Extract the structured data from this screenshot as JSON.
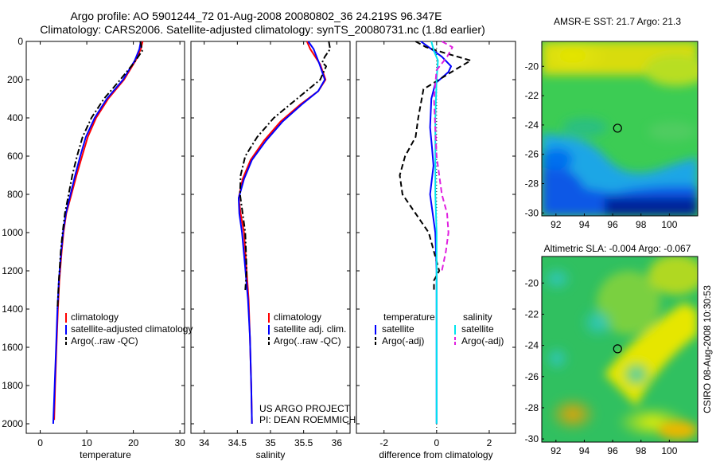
{
  "header": {
    "title_line1": "Argo profile: AO 5901244_72 01-Aug-2008 20080802_36 24.219S 96.347E",
    "title_line2": "Climatology: CARS2006. Satellite-adjusted climatology: synTS_20080731.nc (1.8d earlier)"
  },
  "chart_data": [
    {
      "type": "line",
      "xlabel": "temperature",
      "ylabel": "",
      "xlim": [
        -3,
        31
      ],
      "ylim": [
        2050,
        0
      ],
      "y_inverted": true,
      "xticks": [
        0,
        10,
        20,
        30
      ],
      "yticks": [
        0,
        200,
        400,
        600,
        800,
        1000,
        1200,
        1400,
        1600,
        1800,
        2000
      ],
      "legend": [
        "climatology",
        "satellite-adjusted climatology",
        "Argo(..raw -QC)"
      ],
      "series": [
        {
          "name": "climatology",
          "color": "#ff0000",
          "style": "solid",
          "x": [
            22.0,
            21.6,
            20.5,
            18.0,
            14.6,
            12.0,
            10.2,
            9.0,
            7.8,
            6.7,
            5.6,
            5.0,
            4.6,
            4.1,
            3.8,
            3.5,
            3.2,
            3.0
          ],
          "y": [
            0,
            40,
            100,
            200,
            300,
            400,
            500,
            600,
            700,
            800,
            900,
            1000,
            1100,
            1250,
            1400,
            1600,
            1800,
            1980
          ]
        },
        {
          "name": "satellite-adjusted climatology",
          "color": "#0000ff",
          "style": "solid",
          "x": [
            21.6,
            21.3,
            20.3,
            17.8,
            14.3,
            11.7,
            9.8,
            8.6,
            7.5,
            6.5,
            5.5,
            4.9,
            4.5,
            4.0,
            3.7,
            3.4,
            3.1,
            2.8
          ],
          "y": [
            0,
            40,
            100,
            200,
            300,
            400,
            500,
            600,
            700,
            800,
            900,
            1000,
            1100,
            1250,
            1400,
            1600,
            1800,
            2000
          ]
        },
        {
          "name": "Argo(..raw -QC)",
          "color": "#000000",
          "style": "dashdot",
          "x": [
            21.5,
            21.9,
            20.2,
            17.2,
            13.7,
            11.0,
            9.1,
            7.9,
            6.9,
            6.1,
            5.3,
            4.8,
            4.4,
            4.0,
            3.7
          ],
          "y": [
            0,
            50,
            110,
            200,
            300,
            400,
            500,
            600,
            700,
            800,
            900,
            1000,
            1100,
            1250,
            1400
          ]
        }
      ]
    },
    {
      "type": "line",
      "xlabel": "salinity",
      "ylabel": "",
      "xlim": [
        33.8,
        36.2
      ],
      "ylim": [
        2050,
        0
      ],
      "y_inverted": true,
      "xticks": [
        34,
        34.5,
        35,
        35.5,
        36
      ],
      "legend": [
        "climatology",
        "satellite adj. clim.",
        "Argo(..raw -QC)"
      ],
      "annotation": [
        "US ARGO PROJECT",
        "PI: DEAN ROEMMICH"
      ],
      "series": [
        {
          "name": "climatology",
          "color": "#ff0000",
          "style": "solid",
          "x": [
            35.55,
            35.6,
            35.75,
            35.83,
            35.72,
            35.45,
            35.15,
            34.9,
            34.7,
            34.58,
            34.52,
            34.55,
            34.6,
            34.63,
            34.67,
            34.69,
            34.71,
            34.72
          ],
          "y": [
            0,
            40,
            120,
            200,
            260,
            330,
            420,
            520,
            620,
            720,
            820,
            900,
            1000,
            1150,
            1350,
            1550,
            1800,
            2000
          ]
        },
        {
          "name": "satellite adj. clim.",
          "color": "#0000ff",
          "style": "solid",
          "x": [
            35.57,
            35.65,
            35.74,
            35.82,
            35.72,
            35.47,
            35.18,
            34.93,
            34.72,
            34.6,
            34.52,
            34.53,
            34.57,
            34.61,
            34.66,
            34.69,
            34.71,
            34.72
          ],
          "y": [
            0,
            40,
            120,
            200,
            260,
            330,
            420,
            520,
            620,
            720,
            820,
            900,
            1000,
            1150,
            1350,
            1550,
            1800,
            2000
          ]
        },
        {
          "name": "Argo(..raw -QC)",
          "color": "#000000",
          "style": "dashdot",
          "x": [
            35.88,
            35.9,
            35.82,
            35.78,
            35.84,
            35.75,
            35.4,
            35.05,
            34.8,
            34.62,
            34.55,
            34.54,
            34.58,
            34.62,
            34.63,
            34.64,
            34.62
          ],
          "y": [
            0,
            40,
            80,
            110,
            130,
            200,
            300,
            400,
            500,
            600,
            700,
            800,
            900,
            1000,
            1100,
            1200,
            1300
          ]
        }
      ]
    },
    {
      "type": "line",
      "xlabel": "difference from climatology",
      "ylabel": "",
      "xlim": [
        -3.05,
        3.0
      ],
      "ylim": [
        2050,
        0
      ],
      "y_inverted": true,
      "xticks": [
        -2,
        0,
        2
      ],
      "zero_line": "dotted",
      "legend_groups": [
        {
          "heading": "temperature",
          "items": [
            "satellite",
            "Argo(-adj)"
          ]
        },
        {
          "heading": "salinity",
          "items": [
            "satellite",
            "Argo(-adj)"
          ]
        }
      ],
      "series": [
        {
          "name": "satellite",
          "group": "temperature",
          "color": "#0000ff",
          "style": "solid",
          "x": [
            -0.6,
            -0.3,
            0.2,
            0.55,
            0.45,
            -0.05,
            -0.2,
            -0.25,
            -0.18,
            -0.12,
            -0.25,
            -0.15,
            -0.05,
            0.0,
            0.0,
            0.0,
            0.0,
            0.0
          ],
          "y": [
            0,
            30,
            80,
            130,
            160,
            220,
            300,
            450,
            550,
            650,
            800,
            900,
            1000,
            1200,
            1400,
            1600,
            1800,
            2000
          ]
        },
        {
          "name": "Argo(-adj)",
          "group": "temperature",
          "color": "#000000",
          "style": "dashed",
          "x": [
            -0.8,
            -0.4,
            0.3,
            1.3,
            0.8,
            -0.5,
            -0.7,
            -0.8,
            -1.2,
            -1.4,
            -1.3,
            -0.8,
            -0.3,
            -0.1,
            0.0,
            0.1,
            -0.1,
            -0.1
          ],
          "y": [
            0,
            30,
            60,
            100,
            140,
            250,
            400,
            500,
            600,
            700,
            800,
            900,
            1000,
            1100,
            1150,
            1200,
            1250,
            1300
          ]
        },
        {
          "name": "satellite",
          "group": "salinity",
          "color": "#00e5ee",
          "style": "solid",
          "x": [
            -0.2,
            -0.1,
            0.05,
            0.0,
            -0.05,
            -0.05,
            -0.05,
            0.0,
            0.0,
            0.0,
            0.0
          ],
          "y": [
            0,
            50,
            100,
            200,
            400,
            600,
            800,
            1000,
            1400,
            1800,
            2000
          ]
        },
        {
          "name": "Argo(-adj)",
          "group": "salinity",
          "color": "#e020e0",
          "style": "dashed",
          "x": [
            0.2,
            0.6,
            0.4,
            0.0,
            -0.1,
            0.0,
            0.2,
            0.4,
            0.45,
            0.35,
            0.2
          ],
          "y": [
            0,
            30,
            80,
            150,
            300,
            600,
            800,
            900,
            1000,
            1100,
            1200
          ]
        }
      ]
    },
    {
      "type": "heatmap",
      "title": "AMSR-E SST: 21.7 Argo: 21.3",
      "xlim": [
        91,
        102
      ],
      "ylim": [
        -30.2,
        -18.3
      ],
      "xticks": [
        92,
        94,
        96,
        98,
        100
      ],
      "yticks": [
        -20,
        -22,
        -24,
        -26,
        -28,
        -30
      ],
      "marker": {
        "lon": 96.347,
        "lat": -24.219,
        "shape": "circle"
      }
    },
    {
      "type": "heatmap",
      "title": "Altimetric SLA: -0.004 Argo: -0.067",
      "xlim": [
        91,
        102
      ],
      "ylim": [
        -30.2,
        -18.3
      ],
      "xticks": [
        92,
        94,
        96,
        98,
        100
      ],
      "yticks": [
        -20,
        -22,
        -24,
        -26,
        -28,
        -30
      ],
      "marker": {
        "lon": 96.347,
        "lat": -24.219,
        "shape": "circle"
      }
    }
  ],
  "side_label": "CSIRO 08-Aug-2008 10:30:53",
  "colors": {
    "red": "#ff0000",
    "blue": "#0000ff",
    "black": "#000000",
    "cyan": "#00e5ee",
    "magenta": "#e020e0"
  }
}
